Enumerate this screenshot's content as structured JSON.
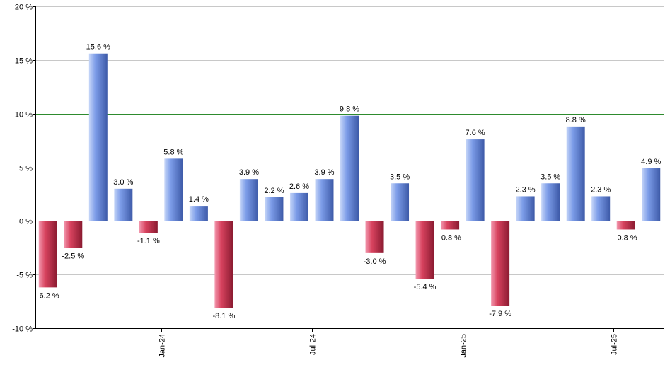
{
  "chart_data": {
    "type": "bar",
    "title": "",
    "xlabel": "",
    "ylabel": "",
    "ylim": [
      -10,
      20
    ],
    "y_ticks": [
      -10,
      -5,
      0,
      5,
      10,
      15,
      20
    ],
    "y_tick_labels": [
      "-10 %",
      "-5 %",
      "0 %",
      "5 %",
      "10 %",
      "15 %",
      "20 %"
    ],
    "reference_line": 10,
    "grid": true,
    "values": [
      -6.2,
      -2.5,
      15.6,
      3.0,
      -1.1,
      5.8,
      1.4,
      -8.1,
      3.9,
      2.2,
      2.6,
      3.9,
      9.8,
      -3.0,
      3.5,
      -5.4,
      -0.8,
      7.6,
      -7.9,
      2.3,
      3.5,
      8.8,
      2.3,
      -0.8,
      4.9
    ],
    "value_labels": [
      "-6.2 %",
      "-2.5 %",
      "15.6 %",
      "3.0 %",
      "-1.1 %",
      "5.8 %",
      "1.4 %",
      "-8.1 %",
      "3.9 %",
      "2.2 %",
      "2.6 %",
      "3.9 %",
      "9.8 %",
      "-3.0 %",
      "3.5 %",
      "-5.4 %",
      "-0.8 %",
      "7.6 %",
      "-7.9 %",
      "2.3 %",
      "3.5 %",
      "8.8 %",
      "2.3 %",
      "-0.8 %",
      "4.9 %"
    ],
    "x_ticks": [
      {
        "label": "Jan-24",
        "after_bar": 4
      },
      {
        "label": "Jul-24",
        "after_bar": 10
      },
      {
        "label": "Jan-25",
        "after_bar": 16
      },
      {
        "label": "Jul-25",
        "after_bar": 22
      }
    ],
    "colors": {
      "positive_light": "#c6d6f8",
      "positive_mid": "#7c9ce8",
      "positive_dark": "#3d5aa8",
      "negative_light": "#f39ab0",
      "negative_mid": "#d8435f",
      "negative_dark": "#8a1a30",
      "reference_line": "#2e8b2e",
      "grid": "#c8c8c8",
      "axis": "#000000"
    }
  }
}
